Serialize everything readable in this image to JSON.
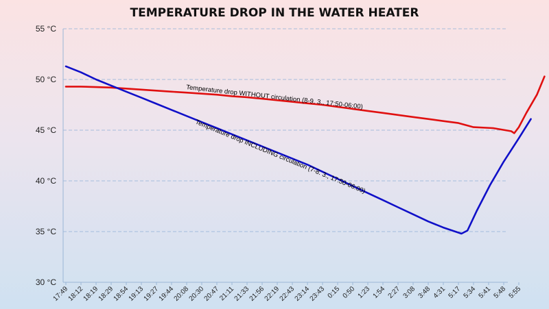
{
  "chart_data": {
    "type": "line",
    "title": "TEMPERATURE DROP IN THE WATER HEATER",
    "y_unit": "°C",
    "ylim": [
      30,
      55
    ],
    "yticks": [
      "55 °C",
      "50 °C",
      "45 °C",
      "40 °C",
      "35 °C",
      "30 °C"
    ],
    "ytick_values": [
      55,
      50,
      45,
      40,
      35,
      30
    ],
    "grid": "horizontal dashed",
    "x_labels": [
      "17:49",
      "18:12",
      "18:19",
      "18:29",
      "18:54",
      "19:13",
      "19:27",
      "19:44",
      "20:08",
      "20:30",
      "20:47",
      "21:11",
      "21:33",
      "21:56",
      "22:19",
      "22:43",
      "23:14",
      "23:43",
      "0:15",
      "0:50",
      "1:23",
      "1:54",
      "2:27",
      "3:08",
      "3:48",
      "4:31",
      "5:17",
      "5:34",
      "5:41",
      "5:48",
      "5:55"
    ],
    "series": [
      {
        "name": "Temperature drop WITHOUT circulation (8-9. 3., 17:50-06:00)",
        "color": "#e01010",
        "points": [
          [
            0,
            49.3
          ],
          [
            1,
            49.3
          ],
          [
            2,
            49.25
          ],
          [
            3,
            49.2
          ],
          [
            4,
            49.1
          ],
          [
            5,
            49.0
          ],
          [
            6,
            48.9
          ],
          [
            7,
            48.8
          ],
          [
            8,
            48.7
          ],
          [
            9,
            48.6
          ],
          [
            10,
            48.5
          ],
          [
            11,
            48.35
          ],
          [
            12,
            48.25
          ],
          [
            13,
            48.1
          ],
          [
            14,
            47.95
          ],
          [
            15,
            47.8
          ],
          [
            16,
            47.65
          ],
          [
            17,
            47.5
          ],
          [
            18,
            47.3
          ],
          [
            19,
            47.1
          ],
          [
            20,
            46.9
          ],
          [
            21,
            46.7
          ],
          [
            22,
            46.5
          ],
          [
            23,
            46.3
          ],
          [
            24,
            46.1
          ],
          [
            25,
            45.9
          ],
          [
            26,
            45.7
          ],
          [
            27,
            45.3
          ],
          [
            28.3,
            45.2
          ],
          [
            29.5,
            44.9
          ],
          [
            29.7,
            44.7
          ],
          [
            30.0,
            45.3
          ],
          [
            30.5,
            46.7
          ],
          [
            31.2,
            48.5
          ],
          [
            31.7,
            50.3
          ]
        ]
      },
      {
        "name": "Temperature drop INCLUDING circulation (7-8. 3., 17:50-06:00)",
        "color": "#1010c8",
        "points": [
          [
            0,
            51.3
          ],
          [
            1,
            50.7
          ],
          [
            2,
            50.0
          ],
          [
            3,
            49.4
          ],
          [
            4,
            48.8
          ],
          [
            5,
            48.2
          ],
          [
            6,
            47.6
          ],
          [
            7,
            47.0
          ],
          [
            8,
            46.4
          ],
          [
            9,
            45.8
          ],
          [
            10,
            45.2
          ],
          [
            11,
            44.6
          ],
          [
            12,
            44.0
          ],
          [
            13,
            43.4
          ],
          [
            14,
            42.8
          ],
          [
            15,
            42.2
          ],
          [
            16,
            41.6
          ],
          [
            17,
            40.9
          ],
          [
            18,
            40.2
          ],
          [
            19,
            39.5
          ],
          [
            20,
            38.8
          ],
          [
            21,
            38.1
          ],
          [
            22,
            37.4
          ],
          [
            23,
            36.7
          ],
          [
            24,
            36.0
          ],
          [
            25,
            35.4
          ],
          [
            26.2,
            34.8
          ],
          [
            26.6,
            35.1
          ],
          [
            27.2,
            37.0
          ],
          [
            28.1,
            39.6
          ],
          [
            29.0,
            41.9
          ],
          [
            30.0,
            44.2
          ],
          [
            30.8,
            46.1
          ]
        ]
      }
    ]
  }
}
